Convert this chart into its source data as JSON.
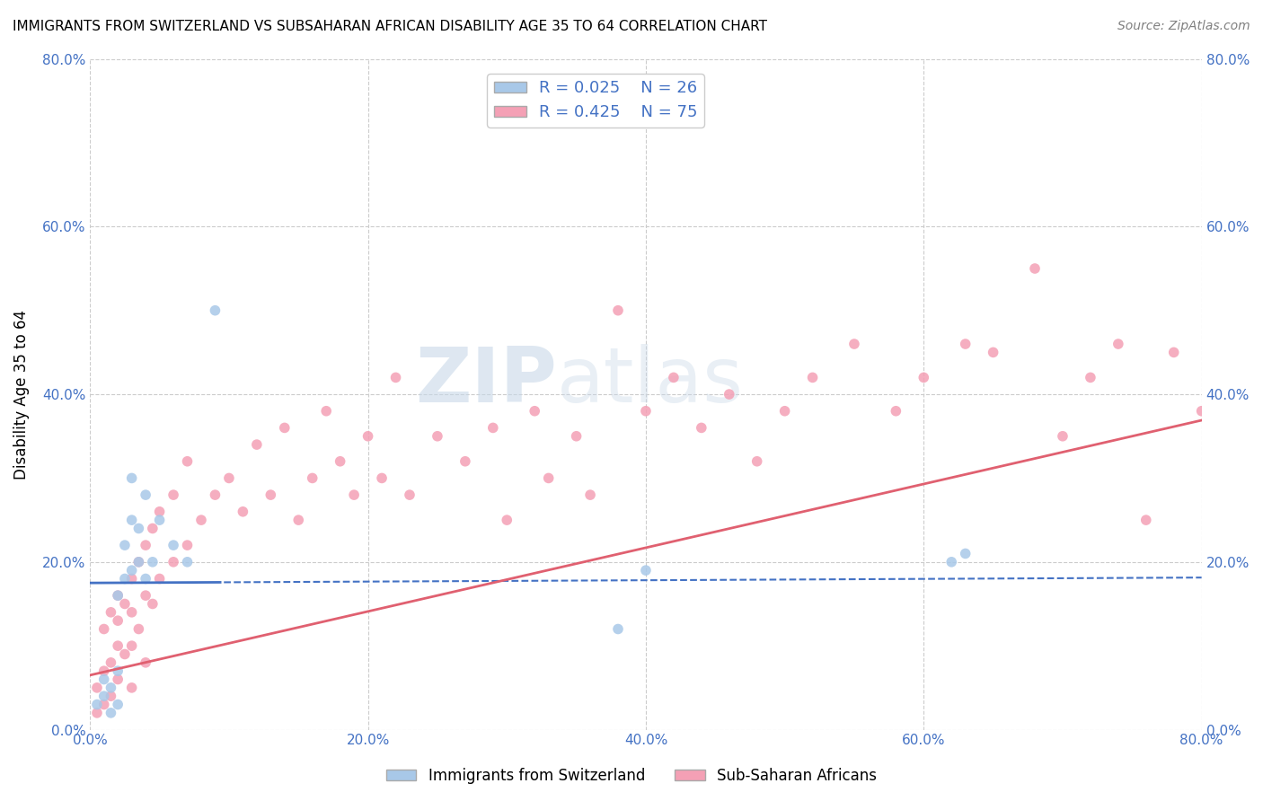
{
  "title": "IMMIGRANTS FROM SWITZERLAND VS SUBSAHARAN AFRICAN DISABILITY AGE 35 TO 64 CORRELATION CHART",
  "source": "Source: ZipAtlas.com",
  "ylabel": "Disability Age 35 to 64",
  "xlim": [
    0.0,
    0.8
  ],
  "ylim": [
    0.0,
    0.8
  ],
  "xticks": [
    0.0,
    0.2,
    0.4,
    0.6,
    0.8
  ],
  "yticks": [
    0.0,
    0.2,
    0.4,
    0.6,
    0.8
  ],
  "xticklabels": [
    "0.0%",
    "20.0%",
    "40.0%",
    "60.0%",
    "80.0%"
  ],
  "yticklabels": [
    "0.0%",
    "20.0%",
    "40.0%",
    "60.0%",
    "80.0%"
  ],
  "swiss_color": "#a8c8e8",
  "subsaharan_color": "#f4a0b5",
  "swiss_R": 0.025,
  "swiss_N": 26,
  "subsaharan_R": 0.425,
  "subsaharan_N": 75,
  "swiss_line_color": "#4472c4",
  "subsaharan_line_color": "#e06070",
  "swiss_scatter_x": [
    0.005,
    0.01,
    0.01,
    0.015,
    0.015,
    0.02,
    0.02,
    0.02,
    0.025,
    0.025,
    0.03,
    0.03,
    0.03,
    0.035,
    0.035,
    0.04,
    0.04,
    0.045,
    0.05,
    0.06,
    0.07,
    0.09,
    0.38,
    0.4,
    0.62,
    0.63
  ],
  "swiss_scatter_y": [
    0.03,
    0.04,
    0.06,
    0.02,
    0.05,
    0.03,
    0.07,
    0.16,
    0.18,
    0.22,
    0.19,
    0.25,
    0.3,
    0.2,
    0.24,
    0.18,
    0.28,
    0.2,
    0.25,
    0.22,
    0.2,
    0.5,
    0.12,
    0.19,
    0.2,
    0.21
  ],
  "subsaharan_scatter_x": [
    0.005,
    0.005,
    0.01,
    0.01,
    0.01,
    0.015,
    0.015,
    0.015,
    0.02,
    0.02,
    0.02,
    0.02,
    0.025,
    0.025,
    0.03,
    0.03,
    0.03,
    0.03,
    0.035,
    0.035,
    0.04,
    0.04,
    0.04,
    0.045,
    0.045,
    0.05,
    0.05,
    0.06,
    0.06,
    0.07,
    0.07,
    0.08,
    0.09,
    0.1,
    0.11,
    0.12,
    0.13,
    0.14,
    0.15,
    0.16,
    0.17,
    0.18,
    0.19,
    0.2,
    0.21,
    0.22,
    0.23,
    0.25,
    0.27,
    0.29,
    0.3,
    0.32,
    0.33,
    0.35,
    0.36,
    0.38,
    0.4,
    0.42,
    0.44,
    0.46,
    0.48,
    0.5,
    0.52,
    0.55,
    0.58,
    0.6,
    0.63,
    0.65,
    0.68,
    0.7,
    0.72,
    0.74,
    0.76,
    0.78,
    0.8
  ],
  "subsaharan_scatter_y": [
    0.02,
    0.05,
    0.03,
    0.07,
    0.12,
    0.04,
    0.08,
    0.14,
    0.06,
    0.1,
    0.13,
    0.16,
    0.09,
    0.15,
    0.05,
    0.1,
    0.14,
    0.18,
    0.12,
    0.2,
    0.08,
    0.16,
    0.22,
    0.15,
    0.24,
    0.18,
    0.26,
    0.2,
    0.28,
    0.22,
    0.32,
    0.25,
    0.28,
    0.3,
    0.26,
    0.34,
    0.28,
    0.36,
    0.25,
    0.3,
    0.38,
    0.32,
    0.28,
    0.35,
    0.3,
    0.42,
    0.28,
    0.35,
    0.32,
    0.36,
    0.25,
    0.38,
    0.3,
    0.35,
    0.28,
    0.5,
    0.38,
    0.42,
    0.36,
    0.4,
    0.32,
    0.38,
    0.42,
    0.46,
    0.38,
    0.42,
    0.46,
    0.45,
    0.55,
    0.35,
    0.42,
    0.46,
    0.25,
    0.45,
    0.38
  ],
  "watermark_zip": "ZIP",
  "watermark_atlas": "atlas",
  "grid_color": "#cccccc",
  "tick_color": "#4472c4",
  "background_color": "#ffffff",
  "swiss_line_intercept": 0.175,
  "swiss_line_slope": 0.008,
  "sub_line_intercept": 0.065,
  "sub_line_slope": 0.38
}
